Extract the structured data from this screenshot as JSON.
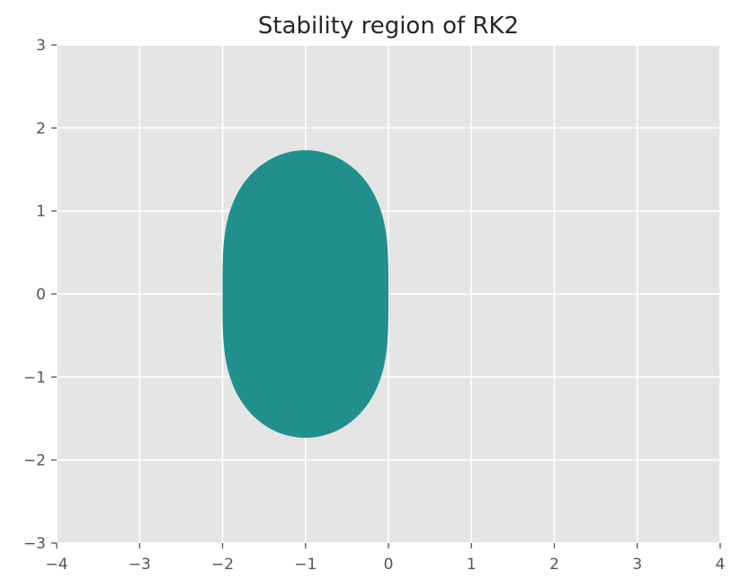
{
  "chart_data": {
    "type": "area",
    "title": "Stability region of RK2",
    "xlabel": "",
    "ylabel": "",
    "xlim": [
      -4,
      4
    ],
    "ylim": [
      -3,
      3
    ],
    "xticks": [
      -4,
      -3,
      -2,
      -1,
      0,
      1,
      2,
      3,
      4
    ],
    "yticks": [
      -3,
      -2,
      -1,
      0,
      1,
      2,
      3
    ],
    "xtick_labels": [
      "−4",
      "−3",
      "−2",
      "−1",
      "0",
      "1",
      "2",
      "3",
      "4"
    ],
    "ytick_labels": [
      "−3",
      "−2",
      "−1",
      "0",
      "1",
      "2",
      "3"
    ],
    "grid": true,
    "region": {
      "description": "|1 + z + z^2/2| <= 1",
      "x_extent": [
        -2,
        0
      ],
      "y_extent": [
        -1.732,
        1.732
      ],
      "color": "#21908d"
    },
    "background": "#e5e5e5",
    "grid_color": "#ffffff"
  }
}
